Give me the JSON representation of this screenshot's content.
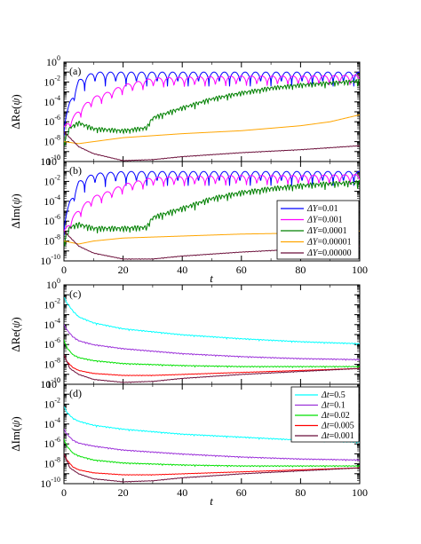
{
  "figure": {
    "panels": [
      {
        "id": "a",
        "label": "(a)",
        "ylabel_prefix": "ΔRe(",
        "ylabel_psi": "ψ",
        "ylabel_suffix": ")"
      },
      {
        "id": "b",
        "label": "(b)",
        "ylabel_prefix": "ΔIm(",
        "ylabel_psi": "ψ",
        "ylabel_suffix": ")"
      },
      {
        "id": "c",
        "label": "(c)",
        "ylabel_prefix": "ΔRe(",
        "ylabel_psi": "ψ",
        "ylabel_suffix": ")"
      },
      {
        "id": "d",
        "label": "(d)",
        "ylabel_prefix": "ΔIm(",
        "ylabel_psi": "ψ",
        "ylabel_suffix": ")"
      }
    ],
    "xlabel": "t",
    "legend_top": [
      {
        "sym": "ΔY",
        "val": "=0.01",
        "color": "#0000ff"
      },
      {
        "sym": "ΔY",
        "val": "=0.001",
        "color": "#ff00ff"
      },
      {
        "sym": "ΔY",
        "val": "=0.0001",
        "color": "#008000"
      },
      {
        "sym": "ΔY",
        "val": "=0.00001",
        "color": "#ffa500"
      },
      {
        "sym": "ΔY",
        "val": "=0.00000",
        "color": "#6b0f3a"
      }
    ],
    "legend_bottom": [
      {
        "sym": "Δt",
        "val": "=0.5",
        "color": "#00ffff"
      },
      {
        "sym": "Δt",
        "val": "=0.1",
        "color": "#9b30d9"
      },
      {
        "sym": "Δt",
        "val": "=0.02",
        "color": "#00e000"
      },
      {
        "sym": "Δt",
        "val": "=0.005",
        "color": "#ff0000"
      },
      {
        "sym": "Δt",
        "val": "=0.001",
        "color": "#6b0f3a"
      }
    ]
  },
  "chart_data": [
    {
      "panel": "a",
      "type": "line",
      "xlabel": "t",
      "ylabel": "ΔRe(ψ)",
      "xlim": [
        0,
        100
      ],
      "ylim_log10": [
        -10,
        0
      ],
      "yscale": "log",
      "x_ticks": [
        0,
        20,
        40,
        60,
        80,
        100
      ],
      "y_ticks": [
        "10^0",
        "10^-2",
        "10^-4",
        "10^-6",
        "10^-8",
        "10^-10"
      ],
      "tick_labels_x_shown": false,
      "series": [
        {
          "name": "ΔY=0.01",
          "color": "#0000ff",
          "x": [
            0,
            2,
            5,
            10,
            20,
            40,
            60,
            80,
            100
          ],
          "log10_y": [
            -6,
            -4,
            -1.8,
            -1,
            -1,
            -1,
            -1,
            -1,
            -1
          ],
          "oscillation": 1.2
        },
        {
          "name": "ΔY=0.001",
          "color": "#ff00ff",
          "x": [
            0,
            3,
            6,
            10,
            15,
            20,
            30,
            40,
            60,
            80,
            100
          ],
          "log10_y": [
            -6.5,
            -5.5,
            -4.5,
            -3.5,
            -3,
            -2.3,
            -1.6,
            -1.5,
            -1.4,
            -1.4,
            -1.3
          ],
          "oscillation": 1.0
        },
        {
          "name": "ΔY=0.0001",
          "color": "#008000",
          "x": [
            0,
            2,
            5,
            10,
            20,
            28,
            30,
            40,
            50,
            60,
            70,
            80,
            90,
            100
          ],
          "log10_y": [
            -8,
            -6.5,
            -6,
            -6.6,
            -6.8,
            -6.5,
            -5.5,
            -4.5,
            -3.6,
            -3,
            -2.5,
            -2.2,
            -2,
            -1.8
          ],
          "oscillation": 0.5
        },
        {
          "name": "ΔY=0.00001",
          "color": "#ffa500",
          "x": [
            0,
            5,
            10,
            20,
            40,
            60,
            80,
            90,
            100
          ],
          "log10_y": [
            -8,
            -8.2,
            -8,
            -7.6,
            -7.2,
            -6.9,
            -6.4,
            -6,
            -5.3
          ],
          "oscillation": 0
        },
        {
          "name": "ΔY=0.00000",
          "color": "#6b0f3a",
          "x": [
            0,
            5,
            10,
            20,
            30,
            40,
            60,
            80,
            100
          ],
          "log10_y": [
            -7,
            -8.5,
            -9.2,
            -9.9,
            -9.8,
            -9.5,
            -9.1,
            -8.8,
            -8.4
          ],
          "oscillation": 0.05
        }
      ]
    },
    {
      "panel": "b",
      "type": "line",
      "xlabel": "t",
      "ylabel": "ΔIm(ψ)",
      "xlim": [
        0,
        100
      ],
      "ylim_log10": [
        -10,
        0
      ],
      "yscale": "log",
      "x_ticks": [
        0,
        20,
        40,
        60,
        80,
        100
      ],
      "y_ticks": [
        "10^0",
        "10^-2",
        "10^-4",
        "10^-6",
        "10^-8",
        "10^-10"
      ],
      "tick_labels_x_shown": true,
      "series": [
        {
          "name": "ΔY=0.01",
          "color": "#0000ff",
          "x": [
            0,
            2,
            5,
            10,
            20,
            40,
            60,
            80,
            100
          ],
          "log10_y": [
            -6,
            -4,
            -2,
            -1.2,
            -1,
            -1,
            -1,
            -1,
            -1
          ],
          "oscillation": 1.2
        },
        {
          "name": "ΔY=0.001",
          "color": "#ff00ff",
          "x": [
            0,
            3,
            6,
            10,
            15,
            20,
            30,
            40,
            60,
            80,
            100
          ],
          "log10_y": [
            -7,
            -5.5,
            -4.5,
            -3.5,
            -3,
            -2.3,
            -1.6,
            -1.5,
            -1.4,
            -1.4,
            -1.3
          ],
          "oscillation": 1.0
        },
        {
          "name": "ΔY=0.0001",
          "color": "#008000",
          "x": [
            0,
            2,
            5,
            10,
            20,
            28,
            30,
            40,
            50,
            60,
            70,
            80,
            90,
            100
          ],
          "log10_y": [
            -8,
            -6.5,
            -6.2,
            -6.6,
            -6.6,
            -6.5,
            -5.5,
            -4.6,
            -3.6,
            -3,
            -2.6,
            -2.3,
            -2.1,
            -2
          ],
          "oscillation": 0.6
        },
        {
          "name": "ΔY=0.00001",
          "color": "#ffa500",
          "x": [
            0,
            5,
            10,
            20,
            40,
            60,
            80,
            100
          ],
          "log10_y": [
            -8,
            -8.3,
            -8,
            -7.7,
            -7.5,
            -7.3,
            -7.2,
            -7
          ],
          "oscillation": 0
        },
        {
          "name": "ΔY=0.00000",
          "color": "#6b0f3a",
          "x": [
            0,
            5,
            10,
            20,
            30,
            40,
            60,
            80,
            100
          ],
          "log10_y": [
            -7,
            -8.5,
            -9.2,
            -9.8,
            -9.8,
            -9.5,
            -9.1,
            -8.8,
            -8.5
          ],
          "oscillation": 0.05
        }
      ]
    },
    {
      "panel": "c",
      "type": "line",
      "xlabel": "t",
      "ylabel": "ΔRe(ψ)",
      "xlim": [
        0,
        100
      ],
      "ylim_log10": [
        -10,
        0
      ],
      "yscale": "log",
      "x_ticks": [
        0,
        20,
        40,
        60,
        80,
        100
      ],
      "y_ticks": [
        "10^0",
        "10^-2",
        "10^-4",
        "10^-6",
        "10^-8",
        "10^-10"
      ],
      "tick_labels_x_shown": false,
      "series": [
        {
          "name": "Δt=0.5",
          "color": "#00ffff",
          "x": [
            0,
            1,
            3,
            5,
            10,
            20,
            40,
            60,
            80,
            100
          ],
          "log10_y": [
            -1.2,
            -1.8,
            -2.6,
            -3.2,
            -3.8,
            -4.4,
            -5,
            -5.4,
            -5.7,
            -5.9
          ],
          "oscillation": 0.1
        },
        {
          "name": "Δt=0.1",
          "color": "#9b30d9",
          "x": [
            0,
            1,
            3,
            5,
            10,
            20,
            40,
            60,
            80,
            100
          ],
          "log10_y": [
            -4,
            -4.5,
            -5.2,
            -5.6,
            -6,
            -6.4,
            -6.9,
            -7.2,
            -7.4,
            -7.5
          ],
          "oscillation": 0.1
        },
        {
          "name": "Δt=0.02",
          "color": "#00e000",
          "x": [
            0,
            1,
            3,
            5,
            10,
            20,
            40,
            60,
            80,
            100
          ],
          "log10_y": [
            -5.5,
            -6.3,
            -7,
            -7.3,
            -7.6,
            -7.9,
            -8.1,
            -8.2,
            -8.2,
            -8.2
          ],
          "oscillation": 0.1
        },
        {
          "name": "Δt=0.005",
          "color": "#ff0000",
          "x": [
            0,
            1,
            3,
            5,
            10,
            20,
            30,
            40,
            60,
            80,
            100
          ],
          "log10_y": [
            -7,
            -7.7,
            -8.3,
            -8.6,
            -8.9,
            -9.1,
            -9.1,
            -9,
            -8.8,
            -8.6,
            -8.4
          ],
          "oscillation": 0.05
        },
        {
          "name": "Δt=0.001",
          "color": "#6b0f3a",
          "x": [
            0,
            2,
            5,
            10,
            20,
            30,
            40,
            60,
            80,
            100
          ],
          "log10_y": [
            -7,
            -8.4,
            -9,
            -9.5,
            -9.8,
            -9.7,
            -9.4,
            -9,
            -8.7,
            -8.4
          ],
          "oscillation": 0.05
        }
      ]
    },
    {
      "panel": "d",
      "type": "line",
      "xlabel": "t",
      "ylabel": "ΔIm(ψ)",
      "xlim": [
        0,
        100
      ],
      "ylim_log10": [
        -10,
        0
      ],
      "yscale": "log",
      "x_ticks": [
        0,
        20,
        40,
        60,
        80,
        100
      ],
      "y_ticks": [
        "10^0",
        "10^-2",
        "10^-4",
        "10^-6",
        "10^-8",
        "10^-10"
      ],
      "tick_labels_x_shown": true,
      "series": [
        {
          "name": "Δt=0.5",
          "color": "#00ffff",
          "x": [
            0,
            1,
            3,
            5,
            10,
            20,
            40,
            60,
            80,
            100
          ],
          "log10_y": [
            -2.2,
            -2.8,
            -3.4,
            -3.7,
            -4.1,
            -4.5,
            -5,
            -5.3,
            -5.6,
            -5.8
          ],
          "oscillation": 0.1
        },
        {
          "name": "Δt=0.1",
          "color": "#9b30d9",
          "x": [
            0,
            1,
            3,
            5,
            10,
            20,
            40,
            60,
            80,
            100
          ],
          "log10_y": [
            -4.5,
            -5,
            -5.6,
            -5.9,
            -6.2,
            -6.6,
            -7,
            -7.3,
            -7.5,
            -7.6
          ],
          "oscillation": 0.1
        },
        {
          "name": "Δt=0.02",
          "color": "#00e000",
          "x": [
            0,
            1,
            3,
            5,
            10,
            20,
            40,
            60,
            80,
            100
          ],
          "log10_y": [
            -5.5,
            -6.2,
            -6.9,
            -7.2,
            -7.6,
            -7.9,
            -8.1,
            -8.2,
            -8.2,
            -8.2
          ],
          "oscillation": 0.1
        },
        {
          "name": "Δt=0.005",
          "color": "#ff0000",
          "x": [
            0,
            1,
            3,
            5,
            10,
            20,
            30,
            40,
            60,
            80,
            100
          ],
          "log10_y": [
            -7,
            -7.6,
            -8.3,
            -8.6,
            -8.9,
            -9.1,
            -9.1,
            -9,
            -8.8,
            -8.6,
            -8.4
          ],
          "oscillation": 0.05
        },
        {
          "name": "Δt=0.001",
          "color": "#6b0f3a",
          "x": [
            0,
            2,
            5,
            10,
            20,
            30,
            40,
            60,
            80,
            100
          ],
          "log10_y": [
            -7,
            -8.4,
            -9,
            -9.5,
            -9.8,
            -9.7,
            -9.4,
            -9,
            -8.7,
            -8.4
          ],
          "oscillation": 0.05
        }
      ]
    }
  ]
}
